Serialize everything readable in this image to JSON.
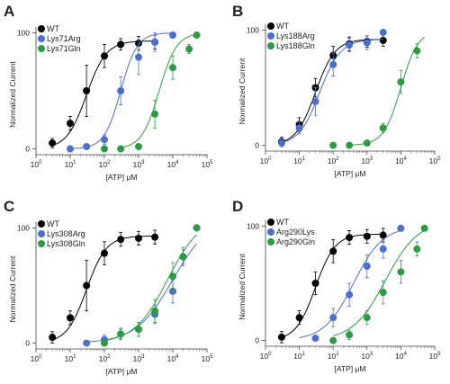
{
  "chart_data": [
    {
      "panel": "A",
      "type": "scatter",
      "xlabel": "[ATP] μM",
      "ylabel": "Normalized Current",
      "xscale": "log",
      "xlim": [
        1,
        100000
      ],
      "ylim": [
        -5,
        105
      ],
      "xticks": [
        {
          "base": "10",
          "exp": "0"
        },
        {
          "base": "10",
          "exp": "1"
        },
        {
          "base": "10",
          "exp": "2"
        },
        {
          "base": "10",
          "exp": "3"
        },
        {
          "base": "10",
          "exp": "4"
        },
        {
          "base": "10",
          "exp": "5"
        }
      ],
      "yticks": [
        "0",
        "100"
      ],
      "legend_position": "top-left",
      "series": [
        {
          "name": "WT",
          "color": "#000000",
          "x": [
            3,
            10,
            30,
            100,
            300,
            1000,
            3000
          ],
          "y": [
            5,
            22,
            50,
            80,
            90,
            91,
            92
          ],
          "err": [
            4,
            6,
            22,
            10,
            5,
            6,
            6
          ],
          "fit": {
            "ec50": 30,
            "hill": 1.5,
            "max": 93,
            "x_range": [
              3,
              3000
            ]
          }
        },
        {
          "name": "Lys71Arg",
          "color": "#4c6fc9",
          "x": [
            10,
            30,
            100,
            300,
            1000,
            3000,
            10000
          ],
          "y": [
            0,
            2,
            8,
            50,
            79,
            92,
            98
          ],
          "err": [
            0,
            0,
            4,
            12,
            15,
            8,
            0
          ],
          "fit": {
            "ec50": 300,
            "hill": 1.8,
            "max": 100,
            "x_range": [
              10,
              10000
            ]
          }
        },
        {
          "name": "Lys71Gln",
          "color": "#2e9a46",
          "x": [
            100,
            300,
            1000,
            3000,
            10000,
            30000,
            50000
          ],
          "y": [
            0,
            0,
            2,
            30,
            70,
            86,
            98
          ],
          "err": [
            0,
            0,
            0,
            12,
            10,
            4,
            0
          ],
          "fit": {
            "ec50": 4000,
            "hill": 1.7,
            "max": 100,
            "x_range": [
              300,
              50000
            ]
          }
        }
      ]
    },
    {
      "panel": "B",
      "type": "scatter",
      "xlabel": "[ATP] μM",
      "ylabel": "Normalized Current",
      "xscale": "log",
      "xlim": [
        1,
        100000
      ],
      "ylim": [
        -5,
        105
      ],
      "xticks": [
        {
          "base": "10",
          "exp": "0"
        },
        {
          "base": "10",
          "exp": "1"
        },
        {
          "base": "10",
          "exp": "2"
        },
        {
          "base": "10",
          "exp": "3"
        },
        {
          "base": "10",
          "exp": "4"
        },
        {
          "base": "10",
          "exp": "5"
        }
      ],
      "yticks": [
        "0",
        "100"
      ],
      "legend_position": "top-left",
      "series": [
        {
          "name": "WT",
          "color": "#000000",
          "x": [
            3,
            10,
            30,
            100,
            300,
            1000,
            3000
          ],
          "y": [
            3,
            18,
            50,
            78,
            88,
            90,
            91
          ],
          "err": [
            4,
            6,
            8,
            8,
            6,
            5,
            5
          ],
          "fit": {
            "ec50": 30,
            "hill": 1.5,
            "max": 92,
            "x_range": [
              3,
              3000
            ]
          }
        },
        {
          "name": "Lys188Arg",
          "color": "#4c6fc9",
          "x": [
            3,
            10,
            30,
            100,
            300,
            1000,
            3000
          ],
          "y": [
            2,
            15,
            38,
            70,
            87,
            89,
            98
          ],
          "err": [
            3,
            5,
            12,
            10,
            6,
            6,
            0
          ],
          "fit": {
            "ec50": 40,
            "hill": 1.4,
            "max": 92,
            "x_range": [
              3,
              3000
            ]
          }
        },
        {
          "name": "Lys188Gln",
          "color": "#2e9a46",
          "x": [
            100,
            300,
            1000,
            3000,
            10000,
            30000
          ],
          "y": [
            0,
            0,
            2,
            15,
            55,
            82
          ],
          "err": [
            0,
            0,
            0,
            4,
            10,
            6
          ],
          "fit": {
            "ec50": 10000,
            "hill": 1.7,
            "max": 100,
            "x_range": [
              300,
              50000
            ]
          }
        }
      ]
    },
    {
      "panel": "C",
      "type": "scatter",
      "xlabel": "[ATP] μM",
      "ylabel": "Normalized Current",
      "xscale": "log",
      "xlim": [
        1,
        100000
      ],
      "ylim": [
        -5,
        105
      ],
      "xticks": [
        {
          "base": "10",
          "exp": "0"
        },
        {
          "base": "10",
          "exp": "1"
        },
        {
          "base": "10",
          "exp": "2"
        },
        {
          "base": "10",
          "exp": "3"
        },
        {
          "base": "10",
          "exp": "4"
        },
        {
          "base": "10",
          "exp": "5"
        }
      ],
      "yticks": [
        "0",
        "100"
      ],
      "legend_position": "top-left",
      "series": [
        {
          "name": "WT",
          "color": "#000000",
          "x": [
            3,
            10,
            30,
            100,
            300,
            1000,
            3000
          ],
          "y": [
            5,
            22,
            50,
            78,
            90,
            91,
            92
          ],
          "err": [
            5,
            6,
            22,
            10,
            6,
            6,
            6
          ],
          "fit": {
            "ec50": 30,
            "hill": 1.5,
            "max": 93,
            "x_range": [
              3,
              3000
            ]
          }
        },
        {
          "name": "Lys308Arg",
          "color": "#4c6fc9",
          "x": [
            30,
            100,
            300,
            1000,
            3000,
            10000,
            20000,
            50000
          ],
          "y": [
            0,
            3,
            8,
            12,
            25,
            45,
            75,
            100
          ],
          "err": [
            0,
            4,
            5,
            6,
            8,
            10,
            6,
            0
          ],
          "fit": {
            "ec50": 10000,
            "hill": 0.8,
            "max": 110,
            "x_range": [
              30,
              50000
            ]
          }
        },
        {
          "name": "Lys308Gln",
          "color": "#2e9a46",
          "x": [
            100,
            300,
            1000,
            3000,
            10000,
            20000,
            50000
          ],
          "y": [
            0,
            8,
            12,
            28,
            58,
            75,
            100
          ],
          "err": [
            0,
            4,
            6,
            10,
            12,
            8,
            0
          ],
          "fit": {
            "ec50": 7000,
            "hill": 0.9,
            "max": 110,
            "x_range": [
              100,
              50000
            ]
          }
        }
      ]
    },
    {
      "panel": "D",
      "type": "scatter",
      "xlabel": "[ATP] μM",
      "ylabel": "Normalized Current",
      "xscale": "log",
      "xlim": [
        1,
        100000
      ],
      "ylim": [
        -5,
        105
      ],
      "xticks": [
        {
          "base": "10",
          "exp": "0"
        },
        {
          "base": "10",
          "exp": "1"
        },
        {
          "base": "10",
          "exp": "2"
        },
        {
          "base": "10",
          "exp": "3"
        },
        {
          "base": "10",
          "exp": "4"
        },
        {
          "base": "10",
          "exp": "5"
        }
      ],
      "yticks": [
        "0",
        "100"
      ],
      "legend_position": "top-left",
      "series": [
        {
          "name": "WT",
          "color": "#000000",
          "x": [
            3,
            10,
            30,
            100,
            300,
            1000,
            3000
          ],
          "y": [
            3,
            20,
            50,
            78,
            90,
            91,
            92
          ],
          "err": [
            5,
            6,
            10,
            10,
            6,
            6,
            6
          ],
          "fit": {
            "ec50": 30,
            "hill": 1.5,
            "max": 93,
            "x_range": [
              3,
              3000
            ]
          }
        },
        {
          "name": "Arg290Lys",
          "color": "#4c6fc9",
          "x": [
            30,
            100,
            300,
            1000,
            3000,
            10000
          ],
          "y": [
            2,
            20,
            40,
            65,
            80,
            98
          ],
          "err": [
            0,
            8,
            10,
            10,
            8,
            0
          ],
          "fit": {
            "ec50": 400,
            "hill": 1.0,
            "max": 100,
            "x_range": [
              10,
              10000
            ]
          }
        },
        {
          "name": "Arg290Gln",
          "color": "#2e9a46",
          "x": [
            100,
            300,
            1000,
            3000,
            10000,
            30000,
            50000
          ],
          "y": [
            0,
            5,
            20,
            42,
            60,
            80,
            98
          ],
          "err": [
            0,
            4,
            6,
            10,
            10,
            6,
            0
          ],
          "fit": {
            "ec50": 3500,
            "hill": 0.9,
            "max": 105,
            "x_range": [
              100,
              50000
            ]
          }
        }
      ]
    }
  ]
}
